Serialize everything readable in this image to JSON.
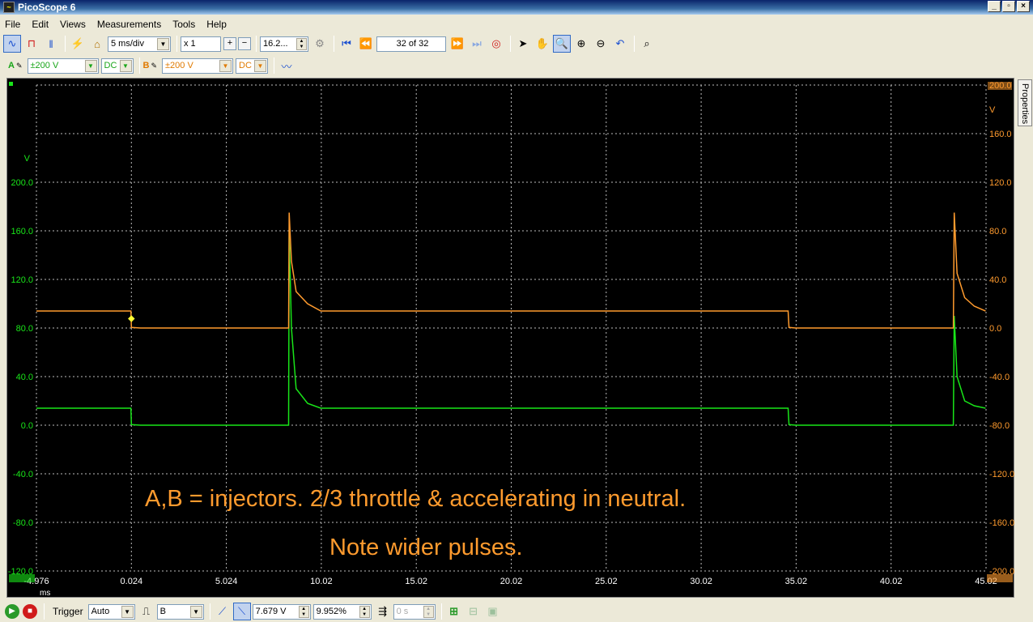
{
  "window": {
    "title": "PicoScope 6",
    "app_icon": "oscilloscope-icon",
    "min": "_",
    "max": "▫",
    "close": "×"
  },
  "menu": [
    "File",
    "Edit",
    "Views",
    "Measurements",
    "Tools",
    "Help"
  ],
  "toolbar": {
    "timebase": "5 ms/div",
    "zoom_factor": "x 1",
    "samples": "16.2...",
    "buffer": "32 of 32"
  },
  "channels": {
    "a": {
      "label": "A",
      "range": "±200 V",
      "coupling": "DC",
      "color": "#19e519"
    },
    "b": {
      "label": "B",
      "range": "±200 V",
      "coupling": "DC",
      "color": "#ff9b2e"
    }
  },
  "properties_tab": "Properties",
  "status": {
    "trigger_label": "Trigger",
    "trigger_mode": "Auto",
    "trigger_source": "B",
    "threshold": "7.679 V",
    "pretrigger": "9.952%",
    "delay": "0 s"
  },
  "chart_data": {
    "type": "line",
    "xlabel": "ms",
    "x_ticks": [
      "-4.976",
      "0.024",
      "5.024",
      "10.02",
      "15.02",
      "20.02",
      "25.02",
      "30.02",
      "35.02",
      "40.02",
      "45.02"
    ],
    "left_axis": {
      "unit": "V",
      "ticks": [
        "200.0",
        "160.0",
        "120.0",
        "80.0",
        "40.0",
        "0.0",
        "-40.0",
        "-80.0",
        "-120.0"
      ],
      "ylim": [
        -120,
        280
      ],
      "color": "#19e519"
    },
    "right_axis": {
      "unit": "V",
      "ticks": [
        "200.0",
        "160.0",
        "120.0",
        "80.0",
        "40.0",
        "0.0",
        "-40.0",
        "-80.0",
        "-120.0",
        "-160.0",
        "-200.0"
      ],
      "ylim": [
        -200,
        200
      ],
      "color": "#ff9b2e"
    },
    "xlim": [
      -4.976,
      45.024
    ],
    "grid": true,
    "series": [
      {
        "color": "#19e519",
        "axis": "left",
        "points": [
          [
            -4.976,
            14
          ],
          [
            0.0,
            14
          ],
          [
            0.024,
            0.5
          ],
          [
            0.5,
            0
          ],
          [
            8.3,
            0
          ],
          [
            8.33,
            160
          ],
          [
            8.45,
            80
          ],
          [
            8.7,
            30
          ],
          [
            9.3,
            18
          ],
          [
            10.0,
            14
          ],
          [
            34.6,
            14
          ],
          [
            34.65,
            0.5
          ],
          [
            35.0,
            0
          ],
          [
            43.3,
            0
          ],
          [
            43.35,
            90
          ],
          [
            43.5,
            40
          ],
          [
            43.9,
            20
          ],
          [
            44.4,
            16
          ],
          [
            45.0,
            14
          ]
        ]
      },
      {
        "color": "#ff9b2e",
        "axis": "right",
        "points": [
          [
            -4.976,
            14
          ],
          [
            0.0,
            14
          ],
          [
            0.024,
            0.5
          ],
          [
            0.5,
            0
          ],
          [
            8.3,
            0
          ],
          [
            8.33,
            95
          ],
          [
            8.45,
            55
          ],
          [
            8.7,
            30
          ],
          [
            9.3,
            20
          ],
          [
            10.0,
            14
          ],
          [
            34.6,
            14
          ],
          [
            34.65,
            0.5
          ],
          [
            35.0,
            0
          ],
          [
            43.3,
            0
          ],
          [
            43.35,
            95
          ],
          [
            43.5,
            45
          ],
          [
            43.9,
            25
          ],
          [
            44.4,
            18
          ],
          [
            45.0,
            14
          ]
        ]
      }
    ],
    "annotations": [
      "A,B = injectors.  2/3 throttle & accelerating in neutral.",
      "Note wider pulses."
    ]
  }
}
